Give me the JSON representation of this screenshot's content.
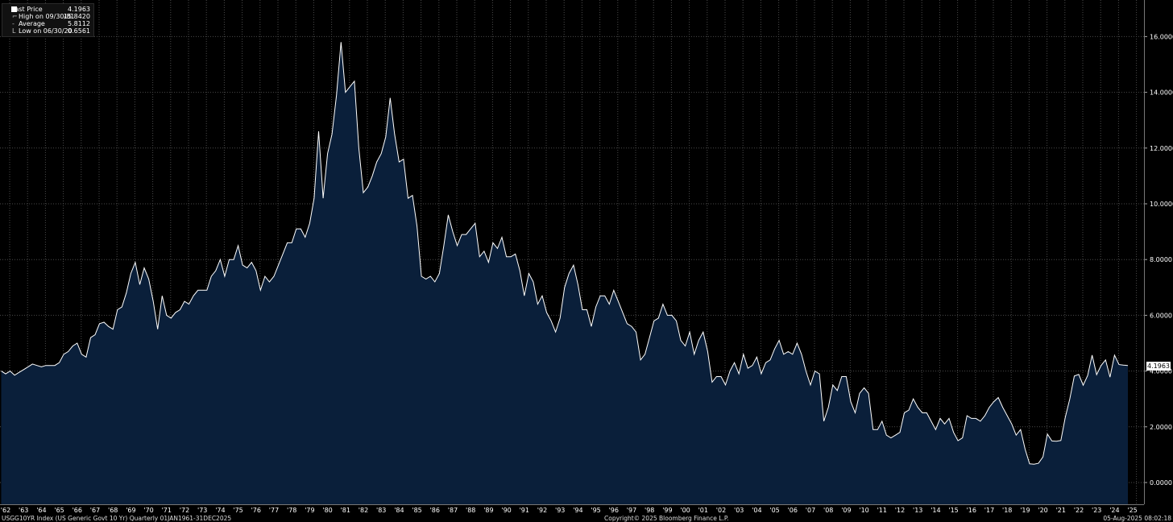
{
  "legend": {
    "last_price_label": "Last Price",
    "last_price_value": "4.1963",
    "high_label": "High on 09/30/81",
    "high_value": "15.8420",
    "average_label": "Average",
    "average_value": "5.8112",
    "low_label": "Low on 06/30/20",
    "low_value": "0.6561"
  },
  "footer": {
    "left": "USGG10YR Index (US Generic Govt 10 Yr)  Quarterly 01JAN1961-31DEC2025",
    "center": "Copyright© 2025 Bloomberg Finance L.P.",
    "right": "05-Aug-2025 08:02:18"
  },
  "last_value_label": "4.1963",
  "colors": {
    "background": "#000000",
    "area_fill": "#0a1f3a",
    "line": "#ffffff",
    "grid": "#555555"
  },
  "chart_data": {
    "type": "area",
    "series_name": "Last Price",
    "y_ticks": [
      "0.0000",
      "2.0000",
      "4.0000",
      "6.0000",
      "8.0000",
      "10.0000",
      "12.0000",
      "14.0000",
      "16.0000"
    ],
    "ylim": [
      -0.8,
      17.2
    ],
    "x_start": 1961.75,
    "x_step": 0.25,
    "x_ticks": [
      "'62",
      "'63",
      "'64",
      "'65",
      "'66",
      "'67",
      "'68",
      "'69",
      "'70",
      "'71",
      "'72",
      "'73",
      "'74",
      "'75",
      "'76",
      "'77",
      "'78",
      "'79",
      "'80",
      "'81",
      "'82",
      "'83",
      "'84",
      "'85",
      "'86",
      "'87",
      "'88",
      "'89",
      "'90",
      "'91",
      "'92",
      "'93",
      "'94",
      "'95",
      "'96",
      "'97",
      "'98",
      "'99",
      "'00",
      "'01",
      "'02",
      "'03",
      "'04",
      "'05",
      "'06",
      "'07",
      "'08",
      "'09",
      "'10",
      "'11",
      "'12",
      "'13",
      "'14",
      "'15",
      "'16",
      "'17",
      "'18",
      "'19",
      "'20",
      "'21",
      "'22",
      "'23",
      "'24",
      "'25"
    ],
    "x_tick_years": [
      1962,
      1963,
      1964,
      1965,
      1966,
      1967,
      1968,
      1969,
      1970,
      1971,
      1972,
      1973,
      1974,
      1975,
      1976,
      1977,
      1978,
      1979,
      1980,
      1981,
      1982,
      1983,
      1984,
      1985,
      1986,
      1987,
      1988,
      1989,
      1990,
      1991,
      1992,
      1993,
      1994,
      1995,
      1996,
      1997,
      1998,
      1999,
      2000,
      2001,
      2002,
      2003,
      2004,
      2005,
      2006,
      2007,
      2008,
      2009,
      2010,
      2011,
      2012,
      2013,
      2014,
      2015,
      2016,
      2017,
      2018,
      2019,
      2020,
      2021,
      2022,
      2023,
      2024,
      2025
    ],
    "grid": true,
    "y_axis_side": "right",
    "values": [
      4.0,
      3.9,
      4.0,
      3.85,
      3.95,
      4.05,
      4.15,
      4.25,
      4.2,
      4.15,
      4.2,
      4.2,
      4.2,
      4.3,
      4.6,
      4.7,
      4.9,
      5.0,
      4.6,
      4.5,
      5.2,
      5.3,
      5.7,
      5.75,
      5.6,
      5.5,
      6.2,
      6.3,
      6.8,
      7.5,
      7.9,
      7.1,
      7.7,
      7.3,
      6.5,
      5.5,
      6.7,
      6.0,
      5.9,
      6.1,
      6.2,
      6.5,
      6.4,
      6.7,
      6.9,
      6.9,
      6.9,
      7.4,
      7.6,
      8.0,
      7.4,
      8.0,
      8.0,
      8.5,
      7.8,
      7.7,
      7.9,
      7.6,
      6.9,
      7.4,
      7.2,
      7.4,
      7.8,
      8.2,
      8.6,
      8.6,
      9.1,
      9.1,
      8.8,
      9.3,
      10.2,
      12.6,
      10.2,
      11.8,
      12.5,
      13.9,
      15.8,
      14.0,
      14.2,
      14.4,
      12.0,
      10.4,
      10.6,
      11.0,
      11.5,
      11.8,
      12.4,
      13.8,
      12.5,
      11.5,
      11.6,
      10.2,
      10.3,
      9.2,
      7.4,
      7.3,
      7.4,
      7.2,
      7.5,
      8.5,
      9.6,
      9.0,
      8.5,
      8.9,
      8.9,
      9.1,
      9.3,
      8.1,
      8.3,
      7.9,
      8.6,
      8.4,
      8.8,
      8.1,
      8.1,
      8.2,
      7.6,
      6.7,
      7.5,
      7.2,
      6.4,
      6.7,
      6.1,
      5.8,
      5.4,
      5.9,
      7.0,
      7.5,
      7.8,
      7.1,
      6.2,
      6.2,
      5.6,
      6.3,
      6.7,
      6.7,
      6.4,
      6.9,
      6.5,
      6.1,
      5.7,
      5.6,
      5.4,
      4.4,
      4.6,
      5.2,
      5.8,
      5.9,
      6.4,
      6.0,
      6.0,
      5.8,
      5.1,
      4.9,
      5.4,
      4.6,
      5.1,
      5.4,
      4.7,
      3.6,
      3.8,
      3.8,
      3.5,
      4.0,
      4.3,
      3.9,
      4.6,
      4.1,
      4.2,
      4.5,
      3.9,
      4.3,
      4.4,
      4.8,
      5.1,
      4.6,
      4.7,
      4.6,
      5.0,
      4.6,
      4.0,
      3.5,
      4.0,
      3.9,
      2.2,
      2.7,
      3.5,
      3.3,
      3.8,
      3.8,
      2.9,
      2.5,
      3.2,
      3.4,
      3.2,
      1.9,
      1.9,
      2.2,
      1.7,
      1.6,
      1.7,
      1.8,
      2.5,
      2.6,
      3.0,
      2.7,
      2.5,
      2.5,
      2.2,
      1.9,
      2.3,
      2.1,
      2.3,
      1.8,
      1.5,
      1.6,
      2.4,
      2.3,
      2.3,
      2.2,
      2.4,
      2.7,
      2.9,
      3.05,
      2.7,
      2.4,
      2.1,
      1.7,
      1.9,
      1.2,
      0.67,
      0.66,
      0.69,
      0.92,
      1.74,
      1.49,
      1.48,
      1.51,
      2.34,
      3.0,
      3.82,
      3.88,
      3.49,
      3.84,
      4.57,
      3.87,
      4.2,
      4.4,
      3.78,
      4.57,
      4.23,
      4.21,
      4.2
    ]
  }
}
